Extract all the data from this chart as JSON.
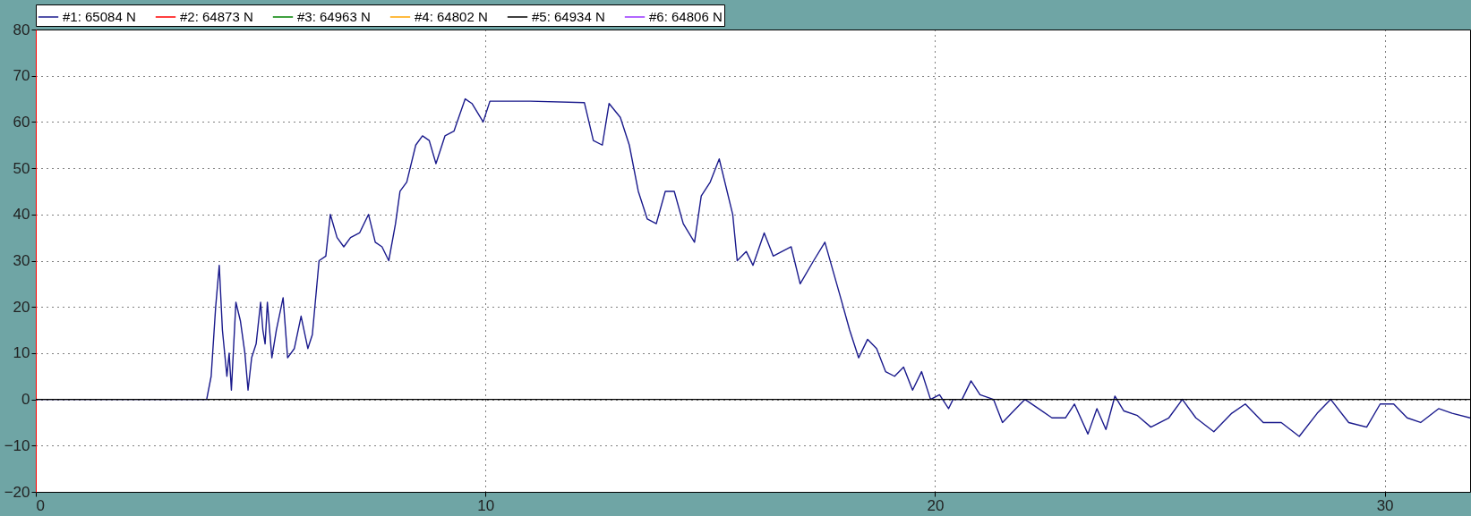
{
  "chart_data": {
    "type": "line",
    "legend": "top left",
    "grid": true,
    "marker": "none",
    "line_style": "solid",
    "xlim": [
      0,
      31.9
    ],
    "xticks": [
      0,
      10,
      20,
      30
    ],
    "ylim": [
      -20,
      80
    ],
    "yticks": [
      -20,
      -10,
      0,
      10,
      20,
      30,
      40,
      50,
      60,
      70,
      80
    ],
    "ref_lines": [
      {
        "axis": "y",
        "value": 0,
        "color": "#000000"
      }
    ],
    "x": [
      0,
      3.8,
      3.9,
      4.0,
      4.08,
      4.15,
      4.25,
      4.3,
      4.35,
      4.45,
      4.55,
      4.65,
      4.72,
      4.8,
      4.9,
      5.0,
      5.05,
      5.1,
      5.15,
      5.25,
      5.35,
      5.5,
      5.6,
      5.75,
      5.9,
      6.05,
      6.15,
      6.3,
      6.45,
      6.55,
      6.7,
      6.85,
      7.0,
      7.2,
      7.4,
      7.55,
      7.7,
      7.85,
      8.0,
      8.1,
      8.25,
      8.45,
      8.6,
      8.75,
      8.9,
      9.1,
      9.3,
      9.55,
      9.7,
      9.95,
      10.1,
      11,
      12.2,
      12.4,
      12.6,
      12.75,
      13.0,
      13.2,
      13.4,
      13.6,
      13.8,
      14.0,
      14.2,
      14.4,
      14.65,
      14.8,
      15.0,
      15.2,
      15.5,
      15.6,
      15.8,
      15.95,
      16.2,
      16.4,
      16.6,
      16.8,
      17.0,
      17.3,
      17.55,
      17.9,
      18.1,
      18.3,
      18.5,
      18.7,
      18.9,
      19.1,
      19.3,
      19.5,
      19.7,
      19.9,
      20.1,
      20.3,
      20.4,
      20.6,
      20.8,
      21.0,
      21.3,
      21.5,
      21.7,
      22.0,
      22.3,
      22.6,
      22.9,
      23.1,
      23.4,
      23.6,
      23.8,
      24.0,
      24.2,
      24.5,
      24.8,
      25.2,
      25.5,
      25.8,
      26.2,
      26.6,
      26.9,
      27.3,
      27.7,
      28.1,
      28.5,
      28.8,
      29.2,
      29.6,
      29.9,
      30.2,
      30.5,
      30.8,
      31.2,
      31.5,
      31.9
    ],
    "series": [
      {
        "name": "#1: 65084 N",
        "color": "#1a1a8c",
        "values": [
          0,
          0,
          5,
          20,
          29,
          15,
          5,
          10,
          2,
          21,
          17,
          10,
          2,
          9,
          12,
          21,
          15,
          12,
          21,
          9,
          15,
          22,
          9,
          11,
          18,
          11,
          14,
          30,
          31,
          40,
          35,
          33,
          35,
          36,
          40,
          34,
          33,
          30,
          38,
          45,
          47,
          55,
          57,
          56,
          51,
          57,
          58,
          65,
          64,
          60,
          64.5,
          64.5,
          64.2,
          56,
          55,
          64,
          61,
          55,
          45,
          39,
          38,
          45,
          45,
          38,
          34,
          44,
          47,
          52,
          40,
          30,
          32,
          29,
          36,
          31,
          32,
          33,
          25,
          30,
          34,
          22,
          15,
          9,
          13,
          11,
          6,
          5,
          7,
          2,
          6,
          0,
          1,
          -2,
          0,
          0,
          4,
          1,
          0,
          -5,
          -3,
          0,
          -2,
          -4,
          -4,
          -1,
          -7.5,
          -2,
          -6.5,
          0.7,
          -2.5,
          -3.5,
          -6,
          -4,
          0,
          -4,
          -7,
          -3,
          -1,
          -5,
          -5,
          -8,
          -3,
          0,
          -5,
          -6,
          -1,
          -1,
          -4,
          -5,
          -2,
          -3,
          -4
        ]
      },
      {
        "name": "#2: 64873 N",
        "color": "#ff0000",
        "values": [
          null,
          null,
          null,
          null,
          null,
          null,
          null,
          null,
          null,
          null,
          null,
          null,
          null,
          null,
          null,
          null,
          null,
          null,
          null,
          null,
          null,
          null,
          null,
          null,
          null,
          null,
          null,
          null,
          null,
          null,
          null,
          null,
          null,
          null,
          null,
          null,
          null,
          null,
          null,
          null,
          null,
          null,
          null,
          null,
          null,
          null,
          null,
          null,
          null,
          null,
          null,
          null,
          null,
          null,
          null,
          null,
          null,
          null,
          null,
          null,
          null,
          null,
          null,
          null,
          null,
          null,
          null,
          null,
          null,
          null,
          null,
          null,
          null,
          null,
          null,
          null,
          null,
          null,
          null,
          null,
          null,
          null,
          null,
          null,
          null,
          null,
          null,
          null,
          null,
          null,
          null,
          null,
          null,
          null,
          null,
          null,
          null,
          null,
          null,
          null,
          null,
          null,
          null,
          null,
          null,
          null,
          null,
          null,
          null,
          null,
          null,
          null,
          null,
          null,
          null,
          null,
          null,
          null,
          null,
          null,
          null,
          null,
          null,
          null,
          null,
          null,
          null,
          null,
          null,
          null,
          null
        ]
      },
      {
        "name": "#3: 64963 N",
        "color": "#008000",
        "values": [
          null,
          null,
          null,
          null,
          null,
          null,
          null,
          null,
          null,
          null,
          null,
          null,
          null,
          null,
          null,
          null,
          null,
          null,
          null,
          null,
          null,
          null,
          null,
          null,
          null,
          null,
          null,
          null,
          null,
          null,
          null,
          null,
          null,
          null,
          null,
          null,
          null,
          null,
          null,
          null,
          null,
          null,
          null,
          null,
          null,
          null,
          null,
          null,
          null,
          null,
          null,
          null,
          null,
          null,
          null,
          null,
          null,
          null,
          null,
          null,
          null,
          null,
          null,
          null,
          null,
          null,
          null,
          null,
          null,
          null,
          null,
          null,
          null,
          null,
          null,
          null,
          null,
          null,
          null,
          null,
          null,
          null,
          null,
          null,
          null,
          null,
          null,
          null,
          null,
          null,
          null,
          null,
          null,
          null,
          null,
          null,
          null,
          null,
          null,
          null,
          null,
          null,
          null,
          null,
          null,
          null,
          null,
          null,
          null,
          null,
          null,
          null,
          null,
          null,
          null,
          null,
          null,
          null,
          null,
          null,
          null,
          null,
          null,
          null,
          null,
          null,
          null,
          null,
          null,
          null,
          null
        ]
      },
      {
        "name": "#4: 64802 N",
        "color": "#ffa500",
        "values": [
          null,
          null,
          null,
          null,
          null,
          null,
          null,
          null,
          null,
          null,
          null,
          null,
          null,
          null,
          null,
          null,
          null,
          null,
          null,
          null,
          null,
          null,
          null,
          null,
          null,
          null,
          null,
          null,
          null,
          null,
          null,
          null,
          null,
          null,
          null,
          null,
          null,
          null,
          null,
          null,
          null,
          null,
          null,
          null,
          null,
          null,
          null,
          null,
          null,
          null,
          null,
          null,
          null,
          null,
          null,
          null,
          null,
          null,
          null,
          null,
          null,
          null,
          null,
          null,
          null,
          null,
          null,
          null,
          null,
          null,
          null,
          null,
          null,
          null,
          null,
          null,
          null,
          null,
          null,
          null,
          null,
          null,
          null,
          null,
          null,
          null,
          null,
          null,
          null,
          null,
          null,
          null,
          null,
          null,
          null,
          null,
          null,
          null,
          null,
          null,
          null,
          null,
          null,
          null,
          null,
          null,
          null,
          null,
          null,
          null,
          null,
          null,
          null,
          null,
          null,
          null,
          null,
          null,
          null,
          null,
          null,
          null,
          null,
          null,
          null,
          null,
          null,
          null,
          null,
          null,
          null
        ]
      },
      {
        "name": "#5: 64934 N",
        "color": "#000000",
        "values": [
          null,
          null,
          null,
          null,
          null,
          null,
          null,
          null,
          null,
          null,
          null,
          null,
          null,
          null,
          null,
          null,
          null,
          null,
          null,
          null,
          null,
          null,
          null,
          null,
          null,
          null,
          null,
          null,
          null,
          null,
          null,
          null,
          null,
          null,
          null,
          null,
          null,
          null,
          null,
          null,
          null,
          null,
          null,
          null,
          null,
          null,
          null,
          null,
          null,
          null,
          null,
          null,
          null,
          null,
          null,
          null,
          null,
          null,
          null,
          null,
          null,
          null,
          null,
          null,
          null,
          null,
          null,
          null,
          null,
          null,
          null,
          null,
          null,
          null,
          null,
          null,
          null,
          null,
          null,
          null,
          null,
          null,
          null,
          null,
          null,
          null,
          null,
          null,
          null,
          null,
          null,
          null,
          null,
          null,
          null,
          null,
          null,
          null,
          null,
          null,
          null,
          null,
          null,
          null,
          null,
          null,
          null,
          null,
          null,
          null,
          null,
          null,
          null,
          null,
          null,
          null,
          null,
          null,
          null,
          null,
          null,
          null,
          null,
          null,
          null,
          null,
          null,
          null,
          null,
          null,
          null
        ]
      },
      {
        "name": "#6: 64806 N",
        "color": "#9933ff",
        "values": [
          null,
          null,
          null,
          null,
          null,
          null,
          null,
          null,
          null,
          null,
          null,
          null,
          null,
          null,
          null,
          null,
          null,
          null,
          null,
          null,
          null,
          null,
          null,
          null,
          null,
          null,
          null,
          null,
          null,
          null,
          null,
          null,
          null,
          null,
          null,
          null,
          null,
          null,
          null,
          null,
          null,
          null,
          null,
          null,
          null,
          null,
          null,
          null,
          null,
          null,
          null,
          null,
          null,
          null,
          null,
          null,
          null,
          null,
          null,
          null,
          null,
          null,
          null,
          null,
          null,
          null,
          null,
          null,
          null,
          null,
          null,
          null,
          null,
          null,
          null,
          null,
          null,
          null,
          null,
          null,
          null,
          null,
          null,
          null,
          null,
          null,
          null,
          null,
          null,
          null,
          null,
          null,
          null,
          null,
          null,
          null,
          null,
          null,
          null,
          null,
          null,
          null,
          null,
          null,
          null,
          null,
          null,
          null,
          null,
          null,
          null,
          null,
          null,
          null,
          null,
          null,
          null,
          null,
          null,
          null,
          null,
          null,
          null,
          null,
          null,
          null,
          null,
          null,
          null,
          null,
          null
        ]
      }
    ]
  }
}
